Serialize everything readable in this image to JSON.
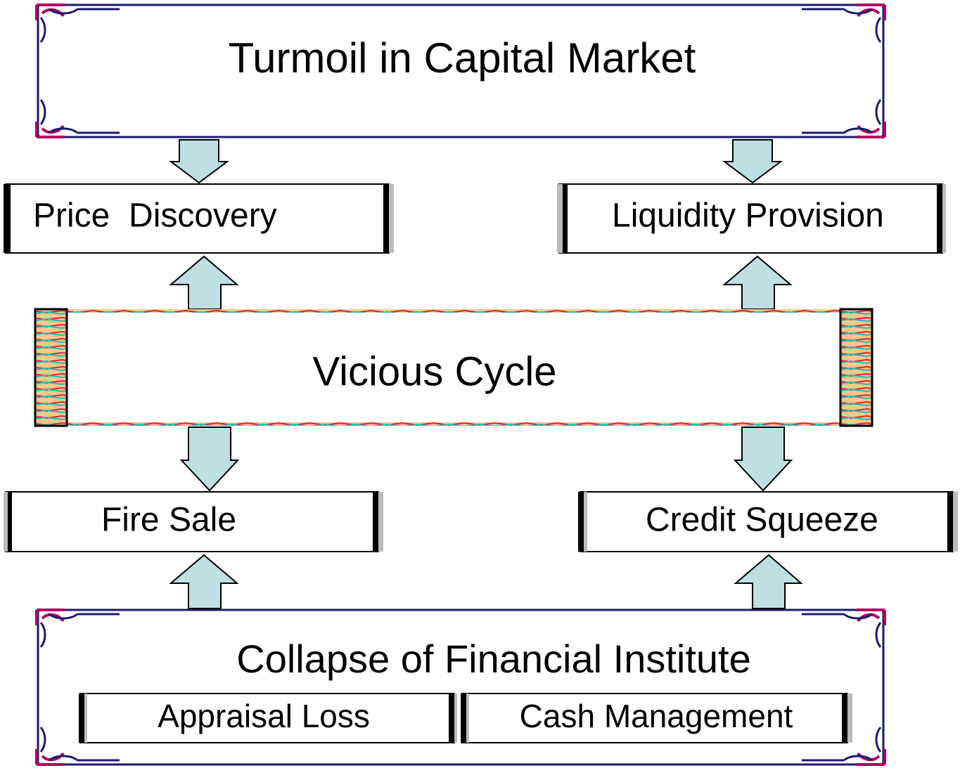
{
  "header": {
    "title": "Turmoil in Capital Market"
  },
  "nodes": [
    {
      "label": "Price  Discovery"
    },
    {
      "label": "Liquidity Provision"
    },
    {
      "label": "Vicious Cycle"
    },
    {
      "label": "Fire Sale"
    },
    {
      "label": "Credit Squeeze"
    }
  ],
  "footer": {
    "title": "Collapse of Financial Institute",
    "items": [
      {
        "label": "Appraisal Loss"
      },
      {
        "label": "Cash Management"
      }
    ]
  }
}
